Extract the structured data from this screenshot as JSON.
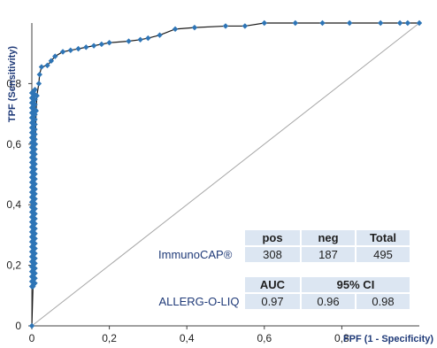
{
  "chart_data": {
    "type": "line",
    "title": "",
    "xlabel": "FPF (1 - Specificity)",
    "ylabel": "TPF (Sensitivity)",
    "xlim": [
      0,
      1
    ],
    "ylim": [
      0,
      1
    ],
    "x_ticks": [
      "0",
      "0,2",
      "0,4",
      "0,6",
      "0,8"
    ],
    "y_ticks": [
      "0",
      "0,2",
      "0,4",
      "0,6",
      "0,8"
    ],
    "grid": false,
    "legend": "none",
    "series": [
      {
        "name": "",
        "color": "#2e75b6",
        "points": [
          [
            0,
            0
          ],
          [
            0.003,
            0.13
          ],
          [
            0.005,
            0.3
          ],
          [
            0.007,
            0.45
          ],
          [
            0.009,
            0.6
          ],
          [
            0.011,
            0.71
          ],
          [
            0.013,
            0.76
          ],
          [
            0.018,
            0.8
          ],
          [
            0.02,
            0.83
          ],
          [
            0.025,
            0.855
          ],
          [
            0.04,
            0.86
          ],
          [
            0.05,
            0.875
          ],
          [
            0.06,
            0.89
          ],
          [
            0.08,
            0.905
          ],
          [
            0.1,
            0.91
          ],
          [
            0.12,
            0.915
          ],
          [
            0.14,
            0.92
          ],
          [
            0.16,
            0.925
          ],
          [
            0.18,
            0.93
          ],
          [
            0.2,
            0.935
          ],
          [
            0.25,
            0.94
          ],
          [
            0.28,
            0.945
          ],
          [
            0.3,
            0.95
          ],
          [
            0.33,
            0.96
          ],
          [
            0.37,
            0.98
          ],
          [
            0.42,
            0.985
          ],
          [
            0.5,
            0.99
          ],
          [
            0.55,
            0.99
          ],
          [
            0.6,
            1.0
          ],
          [
            0.68,
            1.0
          ],
          [
            0.75,
            1.0
          ],
          [
            0.82,
            1.0
          ],
          [
            0.9,
            1.0
          ],
          [
            0.95,
            1.0
          ],
          [
            0.97,
            1.0
          ],
          [
            1.0,
            1.0
          ]
        ],
        "dense_segment": {
          "x": 0,
          "y_from": 0.13,
          "y_to": 0.78,
          "count": 120
        }
      },
      {
        "name": "",
        "color": "#a6a6a6",
        "points": [
          [
            0,
            0
          ],
          [
            1,
            1
          ]
        ]
      }
    ],
    "tables": {
      "counts": {
        "headers": [
          "pos",
          "neg",
          "Total"
        ],
        "row_label": "ImmunoCAP®",
        "values": [
          "308",
          "187",
          "495"
        ]
      },
      "auc": {
        "headers": [
          "AUC",
          "95%  CI"
        ],
        "row_label": "ALLERG-O-LIQ",
        "values": [
          "0.97",
          "0.96",
          "0.98"
        ]
      }
    }
  }
}
